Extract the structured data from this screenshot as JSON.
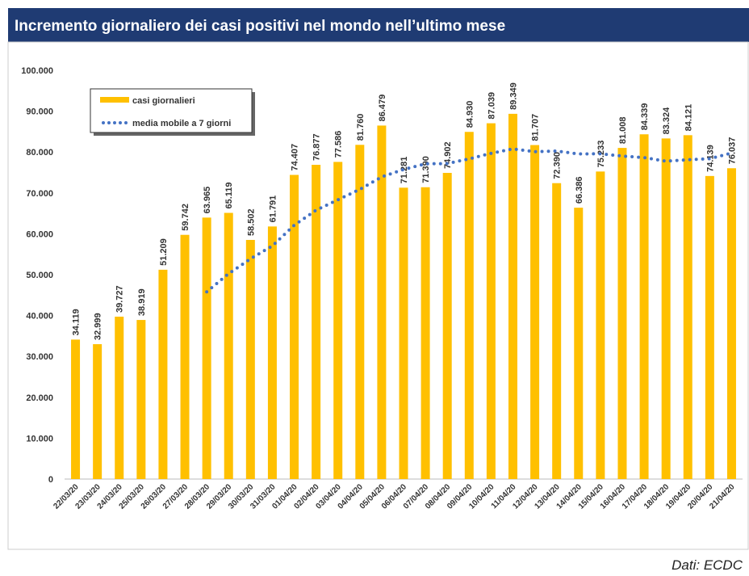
{
  "chart_data": {
    "type": "bar",
    "title": "Incremento giornaliero dei casi positivi nel mondo nell’ultimo mese",
    "source": "Dati: ECDC",
    "categories": [
      "22/03/20",
      "23/03/20",
      "24/03/20",
      "25/03/20",
      "26/03/20",
      "27/03/20",
      "28/03/20",
      "29/03/20",
      "30/03/20",
      "31/03/20",
      "01/04/20",
      "02/04/20",
      "03/04/20",
      "04/04/20",
      "05/04/20",
      "06/04/20",
      "07/04/20",
      "08/04/20",
      "09/04/20",
      "10/04/20",
      "11/04/20",
      "12/04/20",
      "13/04/20",
      "14/04/20",
      "15/04/20",
      "16/04/20",
      "17/04/20",
      "18/04/20",
      "19/04/20",
      "20/04/20",
      "21/04/20"
    ],
    "series": [
      {
        "name": "casi giornalieri",
        "color": "#ffc000",
        "values": [
          34119,
          32999,
          39727,
          38919,
          51209,
          59742,
          63965,
          65119,
          58502,
          61791,
          74407,
          76877,
          77586,
          81760,
          86479,
          71281,
          71390,
          74902,
          84930,
          87039,
          89349,
          81707,
          72390,
          66386,
          75233,
          81008,
          84339,
          83324,
          84121,
          74139,
          76037
        ],
        "value_labels": [
          "34.119",
          "32.999",
          "39.727",
          "38.919",
          "51.209",
          "59.742",
          "63.965",
          "65.119",
          "58.502",
          "61.791",
          "74.407",
          "76.877",
          "77.586",
          "81.760",
          "86.479",
          "71.281",
          "71.390",
          "74.902",
          "84.930",
          "87.039",
          "89.349",
          "81.707",
          "72.390",
          "66.386",
          "75.233",
          "81.008",
          "84.339",
          "83.324",
          "84.121",
          "74.139",
          "76.037"
        ]
      },
      {
        "name": "media mobile a 7 giorni",
        "color": "#4472c4",
        "type": "line",
        "values": [
          null,
          null,
          null,
          null,
          null,
          null,
          45811,
          50240,
          53883,
          57035,
          62105,
          65772,
          68321,
          70863,
          73915,
          75740,
          77111,
          77182,
          78333,
          79683,
          80767,
          80085,
          80244,
          79529,
          79576,
          79016,
          78630,
          77770,
          78114,
          78364,
          79743
        ]
      }
    ],
    "ylim": [
      0,
      100000
    ],
    "yticks": [
      0,
      {
        "value": 10000,
        "label": "10.000"
      },
      {
        "value": 20000,
        "label": "20.000"
      },
      {
        "value": 30000,
        "label": "30.000"
      },
      {
        "value": 40000,
        "label": "40.000"
      },
      {
        "value": 50000,
        "label": "50.000"
      },
      {
        "value": 60000,
        "label": "60.000"
      },
      {
        "value": 70000,
        "label": "70.000"
      },
      {
        "value": 80000,
        "label": "80.000"
      },
      {
        "value": 90000,
        "label": "90.000"
      },
      {
        "value": 100000,
        "label": "100.000"
      }
    ],
    "grid": false,
    "legend": "upper left"
  }
}
